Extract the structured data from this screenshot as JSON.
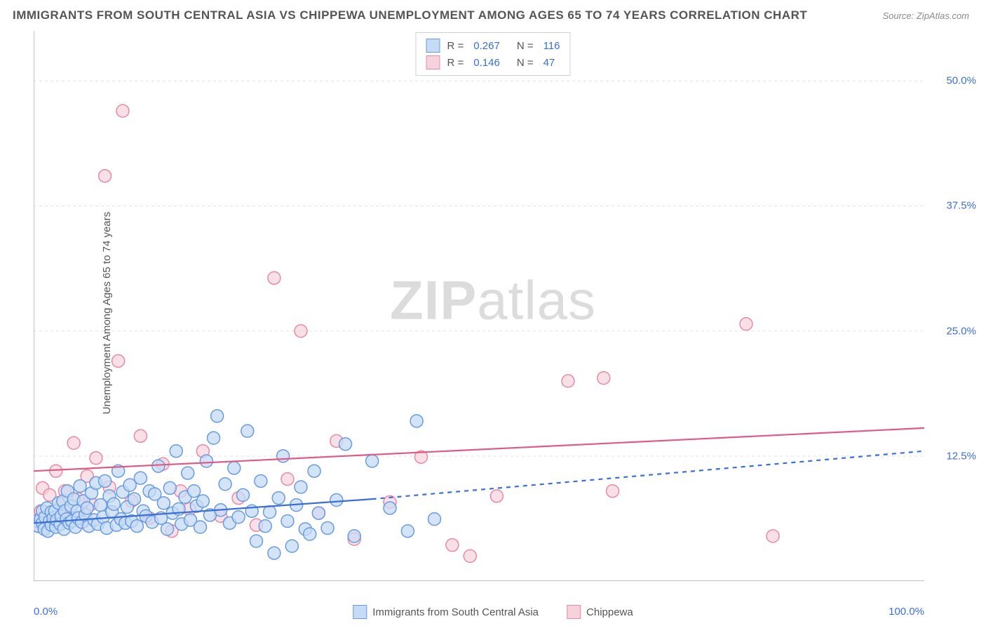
{
  "title": "IMMIGRANTS FROM SOUTH CENTRAL ASIA VS CHIPPEWA UNEMPLOYMENT AMONG AGES 65 TO 74 YEARS CORRELATION CHART",
  "source": "Source: ZipAtlas.com",
  "ylabel": "Unemployment Among Ages 65 to 74 years",
  "watermark_a": "ZIP",
  "watermark_b": "atlas",
  "chart": {
    "type": "scatter",
    "background_color": "#ffffff",
    "grid_color": "#e3e3e3",
    "axis_color": "#9a9a9a",
    "tick_color": "#9a9a9a",
    "text_color": "#555555",
    "value_color": "#3b6fd6",
    "xlim": [
      0,
      100
    ],
    "ylim": [
      0,
      55
    ],
    "x_ticks": [
      0,
      10,
      20,
      30,
      40,
      50,
      60,
      70,
      80,
      90,
      100
    ],
    "x_tick_labels": {
      "0": "0.0%",
      "100": "100.0%"
    },
    "y_gridlines": [
      0,
      12.5,
      25.0,
      37.5,
      50.0
    ],
    "y_tick_labels": [
      "12.5%",
      "25.0%",
      "37.5%",
      "50.0%"
    ],
    "y_tick_values": [
      12.5,
      25.0,
      37.5,
      50.0
    ],
    "marker_radius": 9,
    "marker_stroke_width": 1.5,
    "series": [
      {
        "key": "sca",
        "label": "Immigrants from South Central Asia",
        "fill": "#c6dbf5",
        "stroke": "#6a9be0",
        "fill_opacity": 0.75,
        "r_value": "0.267",
        "n_value": "116",
        "trend": {
          "solid": {
            "x1": 0,
            "y1": 5.8,
            "x2": 38,
            "y2": 8.2
          },
          "dashed": {
            "x1": 38,
            "y1": 8.2,
            "x2": 100,
            "y2": 13.0
          },
          "color": "#3b6fd6",
          "width": 2.2,
          "dash": "6 6"
        },
        "points": [
          [
            0.3,
            6.0
          ],
          [
            0.5,
            5.5
          ],
          [
            0.8,
            6.2
          ],
          [
            1.0,
            7.0
          ],
          [
            1.0,
            5.8
          ],
          [
            1.2,
            5.2
          ],
          [
            1.3,
            6.4
          ],
          [
            1.5,
            7.3
          ],
          [
            1.6,
            5.0
          ],
          [
            1.8,
            6.0
          ],
          [
            2.0,
            6.9
          ],
          [
            2.0,
            5.6
          ],
          [
            2.2,
            6.3
          ],
          [
            2.4,
            7.0
          ],
          [
            2.5,
            5.4
          ],
          [
            2.6,
            6.1
          ],
          [
            2.8,
            7.8
          ],
          [
            3.0,
            5.7
          ],
          [
            3.1,
            6.5
          ],
          [
            3.3,
            8.0
          ],
          [
            3.4,
            5.2
          ],
          [
            3.5,
            7.0
          ],
          [
            3.7,
            6.2
          ],
          [
            3.8,
            9.0
          ],
          [
            4.0,
            5.8
          ],
          [
            4.2,
            7.5
          ],
          [
            4.3,
            6.0
          ],
          [
            4.5,
            8.2
          ],
          [
            4.7,
            5.4
          ],
          [
            4.9,
            7.0
          ],
          [
            5.0,
            6.3
          ],
          [
            5.2,
            9.5
          ],
          [
            5.4,
            5.9
          ],
          [
            5.6,
            8.0
          ],
          [
            5.8,
            6.6
          ],
          [
            6.0,
            7.3
          ],
          [
            6.2,
            5.5
          ],
          [
            6.5,
            8.8
          ],
          [
            6.8,
            6.1
          ],
          [
            7.0,
            9.8
          ],
          [
            7.2,
            5.7
          ],
          [
            7.5,
            7.6
          ],
          [
            7.8,
            6.4
          ],
          [
            8.0,
            10.0
          ],
          [
            8.2,
            5.3
          ],
          [
            8.5,
            8.5
          ],
          [
            8.8,
            6.9
          ],
          [
            9.0,
            7.7
          ],
          [
            9.3,
            5.6
          ],
          [
            9.5,
            11.0
          ],
          [
            9.8,
            6.2
          ],
          [
            10.0,
            8.9
          ],
          [
            10.3,
            5.8
          ],
          [
            10.5,
            7.4
          ],
          [
            10.8,
            9.6
          ],
          [
            11.0,
            6.0
          ],
          [
            11.3,
            8.2
          ],
          [
            11.6,
            5.5
          ],
          [
            12.0,
            10.3
          ],
          [
            12.3,
            7.0
          ],
          [
            12.6,
            6.5
          ],
          [
            13.0,
            9.0
          ],
          [
            13.3,
            5.9
          ],
          [
            13.6,
            8.7
          ],
          [
            14.0,
            11.5
          ],
          [
            14.3,
            6.3
          ],
          [
            14.6,
            7.8
          ],
          [
            15.0,
            5.2
          ],
          [
            15.3,
            9.3
          ],
          [
            15.6,
            6.8
          ],
          [
            16.0,
            13.0
          ],
          [
            16.3,
            7.2
          ],
          [
            16.6,
            5.7
          ],
          [
            17.0,
            8.4
          ],
          [
            17.3,
            10.8
          ],
          [
            17.6,
            6.1
          ],
          [
            18.0,
            9.0
          ],
          [
            18.3,
            7.5
          ],
          [
            18.7,
            5.4
          ],
          [
            19.0,
            8.0
          ],
          [
            19.4,
            12.0
          ],
          [
            19.8,
            6.6
          ],
          [
            20.2,
            14.3
          ],
          [
            20.6,
            16.5
          ],
          [
            21.0,
            7.1
          ],
          [
            21.5,
            9.7
          ],
          [
            22.0,
            5.8
          ],
          [
            22.5,
            11.3
          ],
          [
            23.0,
            6.4
          ],
          [
            23.5,
            8.6
          ],
          [
            24.0,
            15.0
          ],
          [
            24.5,
            7.0
          ],
          [
            25.0,
            4.0
          ],
          [
            25.5,
            10.0
          ],
          [
            26.0,
            5.5
          ],
          [
            26.5,
            6.9
          ],
          [
            27.0,
            2.8
          ],
          [
            27.5,
            8.3
          ],
          [
            28.0,
            12.5
          ],
          [
            28.5,
            6.0
          ],
          [
            29.0,
            3.5
          ],
          [
            29.5,
            7.6
          ],
          [
            30.0,
            9.4
          ],
          [
            30.5,
            5.2
          ],
          [
            31.0,
            4.7
          ],
          [
            31.5,
            11.0
          ],
          [
            32.0,
            6.8
          ],
          [
            33.0,
            5.3
          ],
          [
            34.0,
            8.1
          ],
          [
            35.0,
            13.7
          ],
          [
            36.0,
            4.5
          ],
          [
            38.0,
            12.0
          ],
          [
            40.0,
            7.3
          ],
          [
            42.0,
            5.0
          ],
          [
            43.0,
            16.0
          ],
          [
            45.0,
            6.2
          ]
        ]
      },
      {
        "key": "chip",
        "label": "Chippewa",
        "fill": "#f6d2dc",
        "stroke": "#e88aa6",
        "fill_opacity": 0.7,
        "r_value": "0.146",
        "n_value": "47",
        "trend": {
          "solid": {
            "x1": 0,
            "y1": 11.0,
            "x2": 100,
            "y2": 15.3
          },
          "color": "#e05a84",
          "width": 2.2
        },
        "points": [
          [
            0.5,
            5.5
          ],
          [
            0.8,
            7.0
          ],
          [
            1.0,
            9.3
          ],
          [
            1.5,
            6.2
          ],
          [
            1.8,
            8.6
          ],
          [
            2.0,
            5.8
          ],
          [
            2.5,
            11.0
          ],
          [
            3.0,
            7.5
          ],
          [
            3.5,
            9.0
          ],
          [
            4.0,
            6.4
          ],
          [
            4.5,
            13.8
          ],
          [
            5.0,
            8.2
          ],
          [
            5.5,
            5.9
          ],
          [
            6.0,
            10.5
          ],
          [
            6.5,
            7.7
          ],
          [
            7.0,
            12.3
          ],
          [
            8.0,
            40.5
          ],
          [
            8.5,
            9.4
          ],
          [
            9.5,
            22.0
          ],
          [
            10.0,
            47.0
          ],
          [
            11.0,
            8.0
          ],
          [
            12.0,
            14.5
          ],
          [
            13.0,
            6.3
          ],
          [
            14.5,
            11.7
          ],
          [
            15.5,
            5.0
          ],
          [
            16.5,
            9.0
          ],
          [
            17.5,
            7.2
          ],
          [
            19.0,
            13.0
          ],
          [
            21.0,
            6.5
          ],
          [
            23.0,
            8.3
          ],
          [
            25.0,
            5.6
          ],
          [
            27.0,
            30.3
          ],
          [
            28.5,
            10.2
          ],
          [
            30.0,
            25.0
          ],
          [
            32.0,
            6.8
          ],
          [
            34.0,
            14.0
          ],
          [
            36.0,
            4.2
          ],
          [
            40.0,
            7.9
          ],
          [
            43.5,
            12.4
          ],
          [
            47.0,
            3.6
          ],
          [
            49.0,
            2.5
          ],
          [
            52.0,
            8.5
          ],
          [
            60.0,
            20.0
          ],
          [
            64.0,
            20.3
          ],
          [
            65.0,
            9.0
          ],
          [
            80.0,
            25.7
          ],
          [
            83.0,
            4.5
          ]
        ]
      }
    ]
  },
  "r_label": "R =",
  "n_label": "N ="
}
